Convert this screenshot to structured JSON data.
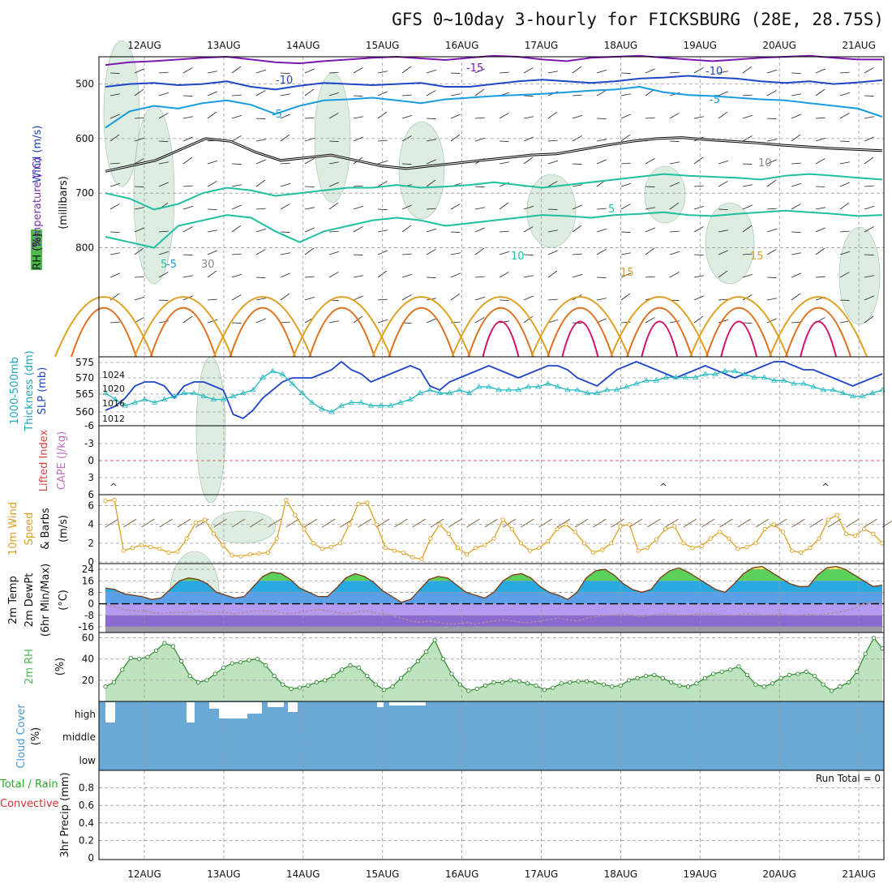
{
  "title": "GFS 0~10day 3-hourly for FICKSBURG (28E, 28.75S)",
  "dates": [
    "12AUG",
    "13AUG",
    "14AUG",
    "15AUG",
    "16AUG",
    "17AUG",
    "18AUG",
    "19AUG",
    "20AUG",
    "21AUG"
  ],
  "colors": {
    "purple": "#7d17b0",
    "blue": "#2046c8",
    "lightblue": "#1a9be0",
    "teal": "#1fbfa0",
    "orange": "#e0a020",
    "darkorange": "#e07020",
    "magenta": "#d0106a",
    "cloud": "#6aa9d6",
    "rh_green": "#4cbb4c"
  },
  "chart_data": [
    {
      "panel": "upper-air",
      "type": "heatmap",
      "ylabel_lines": [
        "Wind (m/s)",
        "Temperature (°C)",
        "RH (%)",
        "(millibars)"
      ],
      "ylabel": "(millibars)",
      "yticks": [
        500,
        600,
        700,
        800
      ],
      "ylim": [
        450,
        1000
      ],
      "contour_labels": [
        "-15",
        "-10",
        "-10",
        "-5",
        "-5",
        "-5",
        "5",
        "5",
        "10",
        "15",
        "15",
        "10",
        "30"
      ],
      "isotherms": [
        {
          "name": "-15",
          "values": [
            465,
            460,
            458,
            455,
            452,
            450,
            455,
            460,
            462,
            458,
            455,
            452,
            450,
            453,
            456,
            452,
            448,
            450,
            455,
            458,
            452,
            450,
            448,
            452,
            455,
            458,
            455,
            452,
            450,
            448,
            452,
            455,
            455
          ]
        },
        {
          "name": "-10",
          "values": [
            505,
            500,
            498,
            502,
            500,
            495,
            505,
            510,
            503,
            498,
            500,
            502,
            500,
            498,
            505,
            505,
            500,
            495,
            492,
            495,
            498,
            495,
            490,
            488,
            485,
            488,
            490,
            495,
            498,
            495,
            500,
            497,
            493
          ]
        },
        {
          "name": "-5",
          "values": [
            580,
            550,
            540,
            545,
            535,
            530,
            538,
            555,
            540,
            530,
            528,
            525,
            530,
            535,
            528,
            525,
            522,
            520,
            518,
            515,
            512,
            510,
            505,
            515,
            520,
            522,
            525,
            528,
            530,
            535,
            540,
            545,
            560
          ]
        },
        {
          "name": "5",
          "values": [
            700,
            710,
            730,
            720,
            700,
            690,
            695,
            705,
            700,
            695,
            690,
            690,
            685,
            690,
            688,
            685,
            680,
            685,
            690,
            685,
            680,
            675,
            670,
            665,
            668,
            670,
            672,
            675,
            668,
            665,
            668,
            672,
            675
          ]
        },
        {
          "name": "10",
          "values": [
            780,
            790,
            800,
            760,
            750,
            740,
            745,
            770,
            790,
            770,
            760,
            750,
            745,
            750,
            760,
            755,
            750,
            745,
            740,
            742,
            745,
            740,
            738,
            735,
            740,
            742,
            738,
            735,
            732,
            735,
            738,
            742,
            740
          ]
        }
      ]
    },
    {
      "panel": "thickness-slp",
      "type": "line",
      "ylabel": "1000-500mb Thickness (dm) / SLP (mb)",
      "left_ticks": [
        "575",
        "570",
        "565",
        "560"
      ],
      "right_ticks": [
        "1024",
        "1020",
        "1016",
        "1012"
      ],
      "series": [
        {
          "name": "SLP (mb)",
          "values": [
            1014,
            1015,
            1017,
            1020,
            1021,
            1021,
            1020,
            1017,
            1020,
            1021,
            1021,
            1020,
            1019,
            1013,
            1012,
            1014,
            1017,
            1019,
            1021,
            1022,
            1022,
            1022,
            1023,
            1024,
            1026,
            1024,
            1023,
            1021,
            1022,
            1023,
            1024,
            1025,
            1024,
            1020,
            1019,
            1021,
            1022,
            1023,
            1024,
            1025,
            1024,
            1023,
            1022,
            1023,
            1024,
            1025,
            1025,
            1024,
            1022,
            1021,
            1020,
            1022,
            1024,
            1025,
            1026,
            1025,
            1024,
            1023,
            1022,
            1023,
            1024,
            1025,
            1024,
            1023,
            1022,
            1023,
            1024,
            1025,
            1026,
            1026,
            1025,
            1024,
            1024,
            1023,
            1022,
            1021,
            1020,
            1021,
            1022,
            1023
          ]
        },
        {
          "name": "Thickness (dm)",
          "values": [
            565,
            563,
            561,
            562,
            563,
            562,
            563,
            564,
            565,
            565,
            564,
            563,
            563,
            564,
            565,
            566,
            570,
            572,
            571,
            568,
            565,
            562,
            560,
            559,
            561,
            562,
            562,
            561,
            561,
            561,
            562,
            563,
            565,
            566,
            565,
            565,
            566,
            565,
            567,
            567,
            566,
            566,
            566,
            567,
            567,
            568,
            567,
            566,
            566,
            565,
            565,
            566,
            566,
            567,
            568,
            569,
            569,
            570,
            570,
            570,
            570,
            571,
            571,
            572,
            572,
            571,
            570,
            570,
            569,
            569,
            568,
            568,
            567,
            566,
            566,
            565,
            564,
            564,
            565,
            566
          ]
        }
      ]
    },
    {
      "panel": "cape-li",
      "type": "line",
      "ylabel": "Lifted Index / CAPE (J/kg)",
      "yticks": [
        "-6",
        "-3",
        "0",
        "3",
        "6"
      ],
      "values": []
    },
    {
      "panel": "wind10m",
      "type": "line",
      "ylabel": "10m Wind Speed & Barbs (m/s)",
      "yticks": [
        0,
        2,
        4,
        6
      ],
      "ylim": [
        0,
        7
      ],
      "values": [
        6.5,
        6.6,
        1.2,
        1.5,
        1.8,
        1.6,
        1.4,
        1.0,
        1.1,
        2.5,
        4.2,
        4.5,
        3.0,
        1.8,
        0.7,
        0.6,
        0.8,
        0.9,
        1.0,
        2.5,
        6.6,
        5.0,
        3.5,
        2.0,
        1.4,
        1.6,
        2.0,
        4.0,
        6.2,
        6.3,
        4.0,
        1.5,
        1.2,
        1.0,
        0.5,
        0.3,
        2.5,
        4.0,
        3.0,
        1.5,
        0.8,
        1.5,
        1.8,
        2.5,
        4.5,
        3.5,
        2.0,
        1.2,
        1.5,
        2.2,
        3.5,
        4.0,
        3.2,
        2.0,
        1.0,
        1.3,
        2.0,
        3.8,
        4.0,
        1.2,
        1.5,
        2.4,
        3.5,
        3.8,
        2.0,
        1.5,
        1.7,
        2.5,
        3.2,
        2.5,
        1.4,
        1.6,
        2.0,
        3.5,
        4.0,
        3.2,
        1.2,
        1.0,
        1.5,
        2.5,
        4.5,
        5.0,
        3.0,
        2.8,
        3.5,
        3.0,
        2.0
      ]
    },
    {
      "panel": "temp2m",
      "type": "area",
      "ylabel": "2m Temp / 2m DewPt (6hr Min/Max) (°C)",
      "yticks": [
        "24",
        "16",
        "8",
        "0",
        "-8",
        "-16"
      ],
      "ylim": [
        -20,
        28
      ],
      "series": [
        {
          "name": "2m Temp",
          "values": [
            11,
            10,
            7,
            6,
            5,
            3,
            4,
            10,
            16,
            18,
            17,
            14,
            8,
            6,
            4,
            5,
            12,
            19,
            22,
            21,
            17,
            11,
            8,
            5,
            5,
            11,
            18,
            21,
            19,
            15,
            9,
            5,
            1,
            3,
            10,
            17,
            19,
            18,
            13,
            8,
            6,
            4,
            8,
            16,
            20,
            21,
            18,
            12,
            8,
            6,
            3,
            8,
            18,
            23,
            24,
            20,
            14,
            10,
            8,
            10,
            18,
            23,
            25,
            22,
            18,
            14,
            10,
            8,
            14,
            21,
            25,
            26,
            22,
            18,
            14,
            12,
            12,
            20,
            25,
            26,
            24,
            20,
            16,
            12,
            13
          ]
        },
        {
          "name": "2m DewPt",
          "values": [
            -1,
            -2,
            -4,
            -5,
            -5,
            -6,
            -7,
            -6,
            -6,
            -6,
            -5,
            -6,
            -6,
            -6,
            -7,
            -6,
            -5,
            -5,
            -5,
            -6,
            -7,
            -6,
            -5,
            -4,
            -5,
            -6,
            -7,
            -6,
            -5,
            -6,
            -7,
            -8,
            -10,
            -12,
            -13,
            -12,
            -13,
            -14,
            -14,
            -13,
            -14,
            -13,
            -12,
            -11,
            -12,
            -13,
            -13,
            -12,
            -11,
            -10,
            -11,
            -12,
            -10,
            -9,
            -8,
            -8,
            -7,
            -8,
            -9,
            -8,
            -7,
            -7,
            -8,
            -8,
            -7,
            -7,
            -7,
            -8,
            -8,
            -7,
            -7,
            -8,
            -8,
            -7,
            -8,
            -8,
            -7,
            -8,
            -7,
            -6,
            -5,
            -3,
            0,
            1,
            2
          ]
        }
      ]
    },
    {
      "panel": "rh2m",
      "type": "area",
      "ylabel": "2m RH (%)",
      "yticks": [
        20,
        40,
        60
      ],
      "ylim": [
        0,
        62
      ],
      "values": [
        14,
        18,
        30,
        41,
        40,
        42,
        48,
        55,
        52,
        38,
        24,
        18,
        20,
        26,
        32,
        36,
        37,
        39,
        40,
        34,
        24,
        16,
        12,
        13,
        15,
        18,
        20,
        24,
        30,
        34,
        32,
        24,
        16,
        11,
        14,
        22,
        30,
        38,
        47,
        58,
        40,
        26,
        16,
        10,
        12,
        15,
        18,
        18,
        20,
        19,
        17,
        15,
        11,
        13,
        17,
        18,
        19,
        19,
        18,
        16,
        14,
        15,
        20,
        22,
        24,
        25,
        22,
        18,
        15,
        14,
        17,
        22,
        26,
        28,
        30,
        33,
        25,
        16,
        14,
        17,
        22,
        25,
        26,
        28,
        24,
        16,
        10,
        14,
        18,
        28,
        45,
        60,
        50
      ]
    },
    {
      "panel": "cloud",
      "type": "bar",
      "ylabel": "Cloud Cover (%)",
      "yticks": [
        "high",
        "middle",
        "low"
      ],
      "values": [
        1,
        1,
        1,
        1,
        1,
        1,
        1,
        1,
        1,
        1,
        1,
        1,
        1,
        1,
        1,
        1,
        1,
        1,
        1,
        1,
        1,
        1,
        1,
        1,
        1,
        1,
        1,
        1,
        1,
        1,
        1,
        1,
        1,
        1,
        1,
        1,
        1,
        1,
        1,
        1,
        1,
        1,
        1,
        1,
        1,
        1,
        1,
        1,
        1,
        1,
        1,
        1,
        1,
        1,
        1,
        1,
        1,
        1,
        1,
        1,
        1,
        1,
        1,
        1,
        1,
        1,
        1,
        1,
        1,
        1,
        1,
        1,
        1,
        1,
        1,
        1,
        1,
        1,
        1,
        1,
        1,
        1,
        1,
        1,
        1,
        1
      ]
    },
    {
      "panel": "precip",
      "type": "bar",
      "ylabel": "3hr Precip (mm)",
      "legend": [
        "Total / Rain",
        "Convective"
      ],
      "yticks": [
        "0",
        "0.2",
        "0.4",
        "0.6",
        "0.8"
      ],
      "ylim": [
        0,
        1
      ],
      "run_total": "Run Total = 0",
      "values": []
    }
  ]
}
